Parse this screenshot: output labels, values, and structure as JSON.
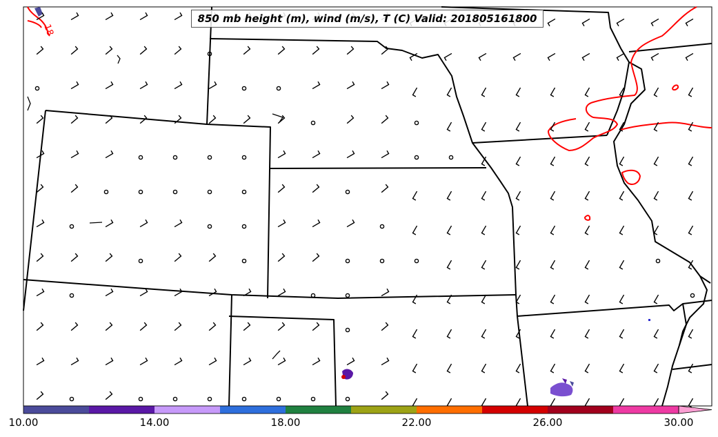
{
  "title": "850 mb height (m), wind (m/s), T (C) Valid: 201805161800",
  "contour_label": "18",
  "colorbar": {
    "min": 10,
    "max": 30,
    "colors": [
      "#4b4b9b",
      "#5a18a6",
      "#c79afa",
      "#2e6fdd",
      "#208140",
      "#9da316",
      "#ff6e00",
      "#d40000",
      "#a1001d",
      "#ee3aa3",
      "#fb9fd3"
    ],
    "labels": [
      "10.00",
      "14.00",
      "18.00",
      "22.00",
      "26.00",
      "30.00"
    ]
  },
  "contour_color": "#ff0000"
}
